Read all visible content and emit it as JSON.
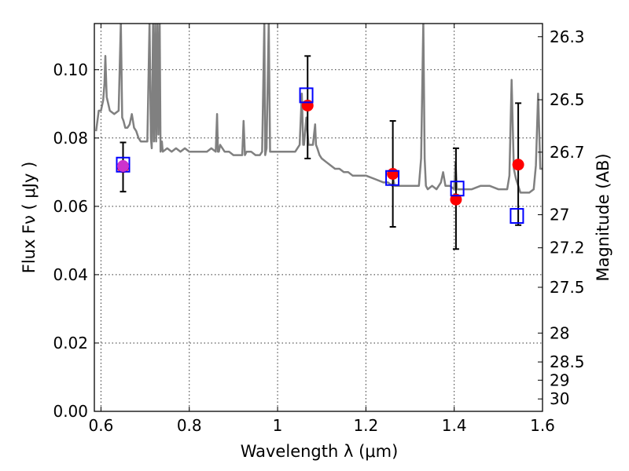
{
  "chart_data": {
    "type": "scatter",
    "title": "",
    "xlabel": "Wavelength  λ (μm)",
    "ylabel": "Flux  Fν  ( μJy )",
    "ylabel_right": "Magnitude (AB)",
    "xlim": [
      0.585,
      1.6
    ],
    "ylim": [
      0.0,
      0.1135
    ],
    "grid": true,
    "x_ticks": [
      0.6,
      0.8,
      1.0,
      1.2,
      1.4,
      1.6
    ],
    "x_tick_labels": [
      "0.6",
      "0.8",
      "1",
      "1.2",
      "1.4",
      "1.6"
    ],
    "y_ticks": [
      0.0,
      0.02,
      0.04,
      0.06,
      0.08,
      0.1
    ],
    "y_tick_labels": [
      "0.00",
      "0.02",
      "0.04",
      "0.06",
      "0.08",
      "0.10"
    ],
    "right_ticks": [
      {
        "label": "26.3",
        "mag": 26.3
      },
      {
        "label": "26.5",
        "mag": 26.5
      },
      {
        "label": "26.7",
        "mag": 26.7
      },
      {
        "label": "27",
        "mag": 27.0
      },
      {
        "label": "27.2",
        "mag": 27.2
      },
      {
        "label": "27.5",
        "mag": 27.5
      },
      {
        "label": "28",
        "mag": 28.0
      },
      {
        "label": "28.5",
        "mag": 28.5
      },
      {
        "label": "29",
        "mag": 29.0
      },
      {
        "label": "30",
        "mag": 30.0
      }
    ],
    "series": [
      {
        "kind": "line",
        "color": "#808080",
        "x": [
          0.589,
          0.595,
          0.6,
          0.605,
          0.608,
          0.61,
          0.613,
          0.62,
          0.63,
          0.64,
          0.645,
          0.648,
          0.651,
          0.655,
          0.66,
          0.665,
          0.67,
          0.675,
          0.68,
          0.685,
          0.69,
          0.695,
          0.7,
          0.705,
          0.71,
          0.713,
          0.715,
          0.718,
          0.72,
          0.723,
          0.725,
          0.728,
          0.73,
          0.733,
          0.735,
          0.738,
          0.74,
          0.75,
          0.76,
          0.77,
          0.78,
          0.79,
          0.8,
          0.81,
          0.82,
          0.83,
          0.84,
          0.85,
          0.86,
          0.863,
          0.865,
          0.867,
          0.87,
          0.88,
          0.89,
          0.9,
          0.91,
          0.92,
          0.923,
          0.926,
          0.93,
          0.94,
          0.95,
          0.96,
          0.965,
          0.97,
          0.972,
          0.975,
          0.98,
          0.983,
          0.986,
          0.99,
          1.0,
          1.01,
          1.02,
          1.03,
          1.04,
          1.05,
          1.055,
          1.058,
          1.06,
          1.065,
          1.07,
          1.075,
          1.08,
          1.085,
          1.087,
          1.09,
          1.095,
          1.1,
          1.11,
          1.12,
          1.13,
          1.14,
          1.15,
          1.16,
          1.17,
          1.18,
          1.2,
          1.22,
          1.24,
          1.25,
          1.26,
          1.262,
          1.265,
          1.27,
          1.28,
          1.3,
          1.32,
          1.325,
          1.33,
          1.333,
          1.336,
          1.34,
          1.35,
          1.36,
          1.37,
          1.375,
          1.38,
          1.39,
          1.4,
          1.403,
          1.406,
          1.41,
          1.42,
          1.44,
          1.46,
          1.48,
          1.5,
          1.52,
          1.525,
          1.53,
          1.535,
          1.54,
          1.55,
          1.56,
          1.57,
          1.58,
          1.585,
          1.59,
          1.595,
          1.6
        ],
        "y": [
          0.082,
          0.088,
          0.088,
          0.091,
          0.096,
          0.104,
          0.092,
          0.088,
          0.087,
          0.088,
          0.114,
          0.086,
          0.085,
          0.083,
          0.083,
          0.084,
          0.087,
          0.083,
          0.082,
          0.08,
          0.079,
          0.079,
          0.079,
          0.079,
          0.114,
          0.08,
          0.077,
          0.114,
          0.079,
          0.114,
          0.079,
          0.114,
          0.081,
          0.114,
          0.076,
          0.079,
          0.076,
          0.077,
          0.076,
          0.077,
          0.076,
          0.077,
          0.076,
          0.076,
          0.076,
          0.076,
          0.076,
          0.077,
          0.076,
          0.087,
          0.076,
          0.076,
          0.078,
          0.076,
          0.076,
          0.075,
          0.075,
          0.075,
          0.085,
          0.075,
          0.076,
          0.076,
          0.075,
          0.075,
          0.076,
          0.114,
          0.075,
          0.077,
          0.114,
          0.076,
          0.076,
          0.076,
          0.076,
          0.076,
          0.076,
          0.076,
          0.076,
          0.078,
          0.093,
          0.078,
          0.078,
          0.086,
          0.078,
          0.078,
          0.078,
          0.084,
          0.078,
          0.077,
          0.075,
          0.074,
          0.073,
          0.072,
          0.071,
          0.071,
          0.07,
          0.07,
          0.069,
          0.069,
          0.069,
          0.068,
          0.067,
          0.067,
          0.066,
          0.068,
          0.066,
          0.066,
          0.066,
          0.066,
          0.066,
          0.074,
          0.114,
          0.074,
          0.066,
          0.065,
          0.066,
          0.065,
          0.067,
          0.07,
          0.066,
          0.066,
          0.065,
          0.073,
          0.065,
          0.065,
          0.065,
          0.065,
          0.066,
          0.066,
          0.065,
          0.065,
          0.069,
          0.097,
          0.071,
          0.068,
          0.064,
          0.064,
          0.064,
          0.065,
          0.072,
          0.093,
          0.071,
          0.071
        ]
      },
      {
        "name": "",
        "kind": "points",
        "marker": "circle",
        "color": "#ff0000",
        "x": [
          0.65,
          1.068,
          1.261,
          1.404,
          1.545
        ],
        "y": [
          0.0715,
          0.0895,
          0.0695,
          0.062,
          0.0722
        ],
        "yerr_low": [
          0.0072,
          0.0155,
          0.0155,
          0.0145,
          0.0177
        ],
        "yerr_high": [
          0.0072,
          0.0145,
          0.0155,
          0.015,
          0.018
        ]
      },
      {
        "name": "",
        "kind": "points",
        "marker": "square-open",
        "color": "#0000ff",
        "x": [
          0.65,
          1.065,
          1.26,
          1.407,
          1.542
        ],
        "y": [
          0.0722,
          0.0925,
          0.0683,
          0.0652,
          0.0572
        ]
      },
      {
        "name": "",
        "kind": "points",
        "marker": "circle",
        "color": "#cc33cc",
        "x": [
          0.65
        ],
        "y": [
          0.0718
        ]
      }
    ]
  }
}
